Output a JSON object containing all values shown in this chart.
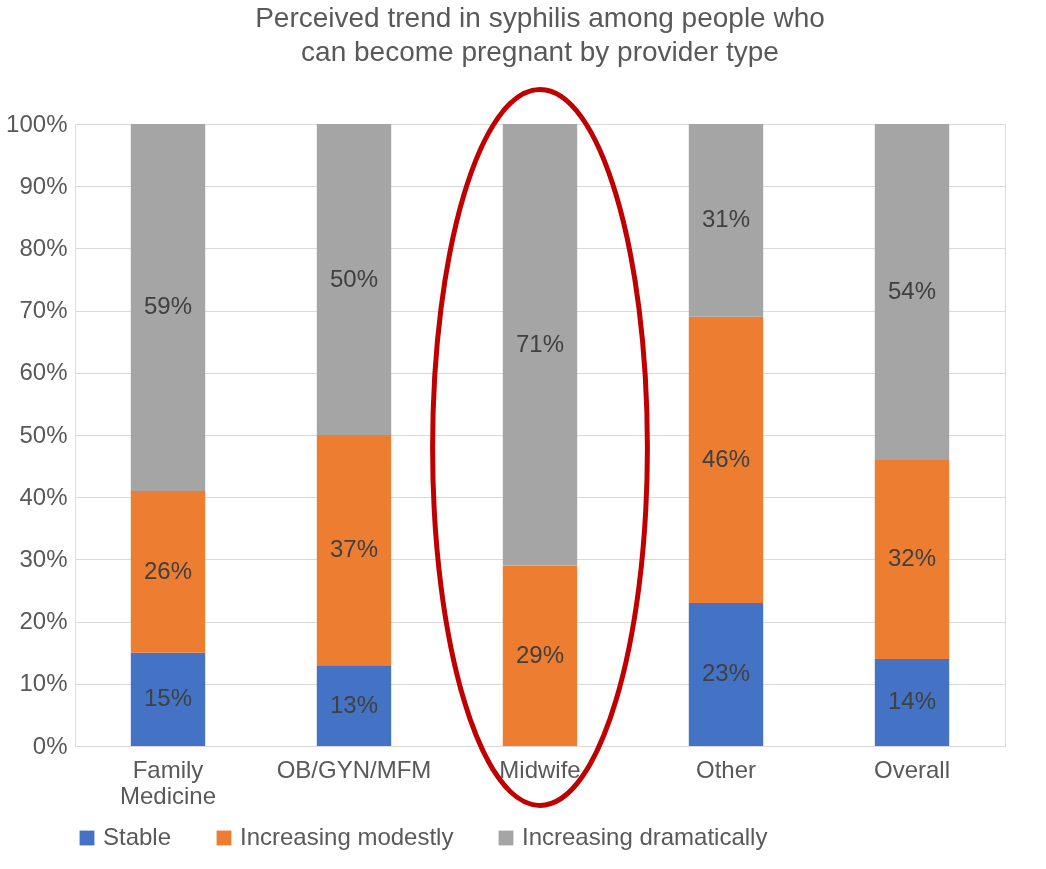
{
  "chart_data": {
    "type": "bar",
    "title": "Perceived trend in syphilis among people who can become pregnant by provider type",
    "categories": [
      "Family Medicine",
      "OB/GYN/MFM",
      "Midwife",
      "Other",
      "Overall"
    ],
    "stacked": true,
    "series": [
      {
        "name": "Stable",
        "color": "#4472c4",
        "values": [
          15,
          13,
          0,
          23,
          14
        ],
        "value_labels": [
          "15%",
          "13%",
          null,
          "23%",
          "14%"
        ]
      },
      {
        "name": "Increasing modestly",
        "color": "#ed7d31",
        "values": [
          26,
          37,
          29,
          46,
          32
        ],
        "value_labels": [
          "26%",
          "37%",
          "29%",
          "46%",
          "32%"
        ]
      },
      {
        "name": "Increasing dramatically",
        "color": "#a5a5a5",
        "values": [
          59,
          50,
          71,
          31,
          54
        ],
        "value_labels": [
          "59%",
          "50%",
          "71%",
          "31%",
          "54%"
        ]
      }
    ],
    "ylim": [
      0,
      100
    ],
    "yticks": [
      {
        "value": 0,
        "label": "0%"
      },
      {
        "value": 10,
        "label": "10%"
      },
      {
        "value": 20,
        "label": "20%"
      },
      {
        "value": 30,
        "label": "30%"
      },
      {
        "value": 40,
        "label": "40%"
      },
      {
        "value": 50,
        "label": "50%"
      },
      {
        "value": 60,
        "label": "60%"
      },
      {
        "value": 70,
        "label": "70%"
      },
      {
        "value": 80,
        "label": "80%"
      },
      {
        "value": 90,
        "label": "90%"
      },
      {
        "value": 100,
        "label": "100%"
      }
    ],
    "grid": "y",
    "legend": "bottom"
  }
}
